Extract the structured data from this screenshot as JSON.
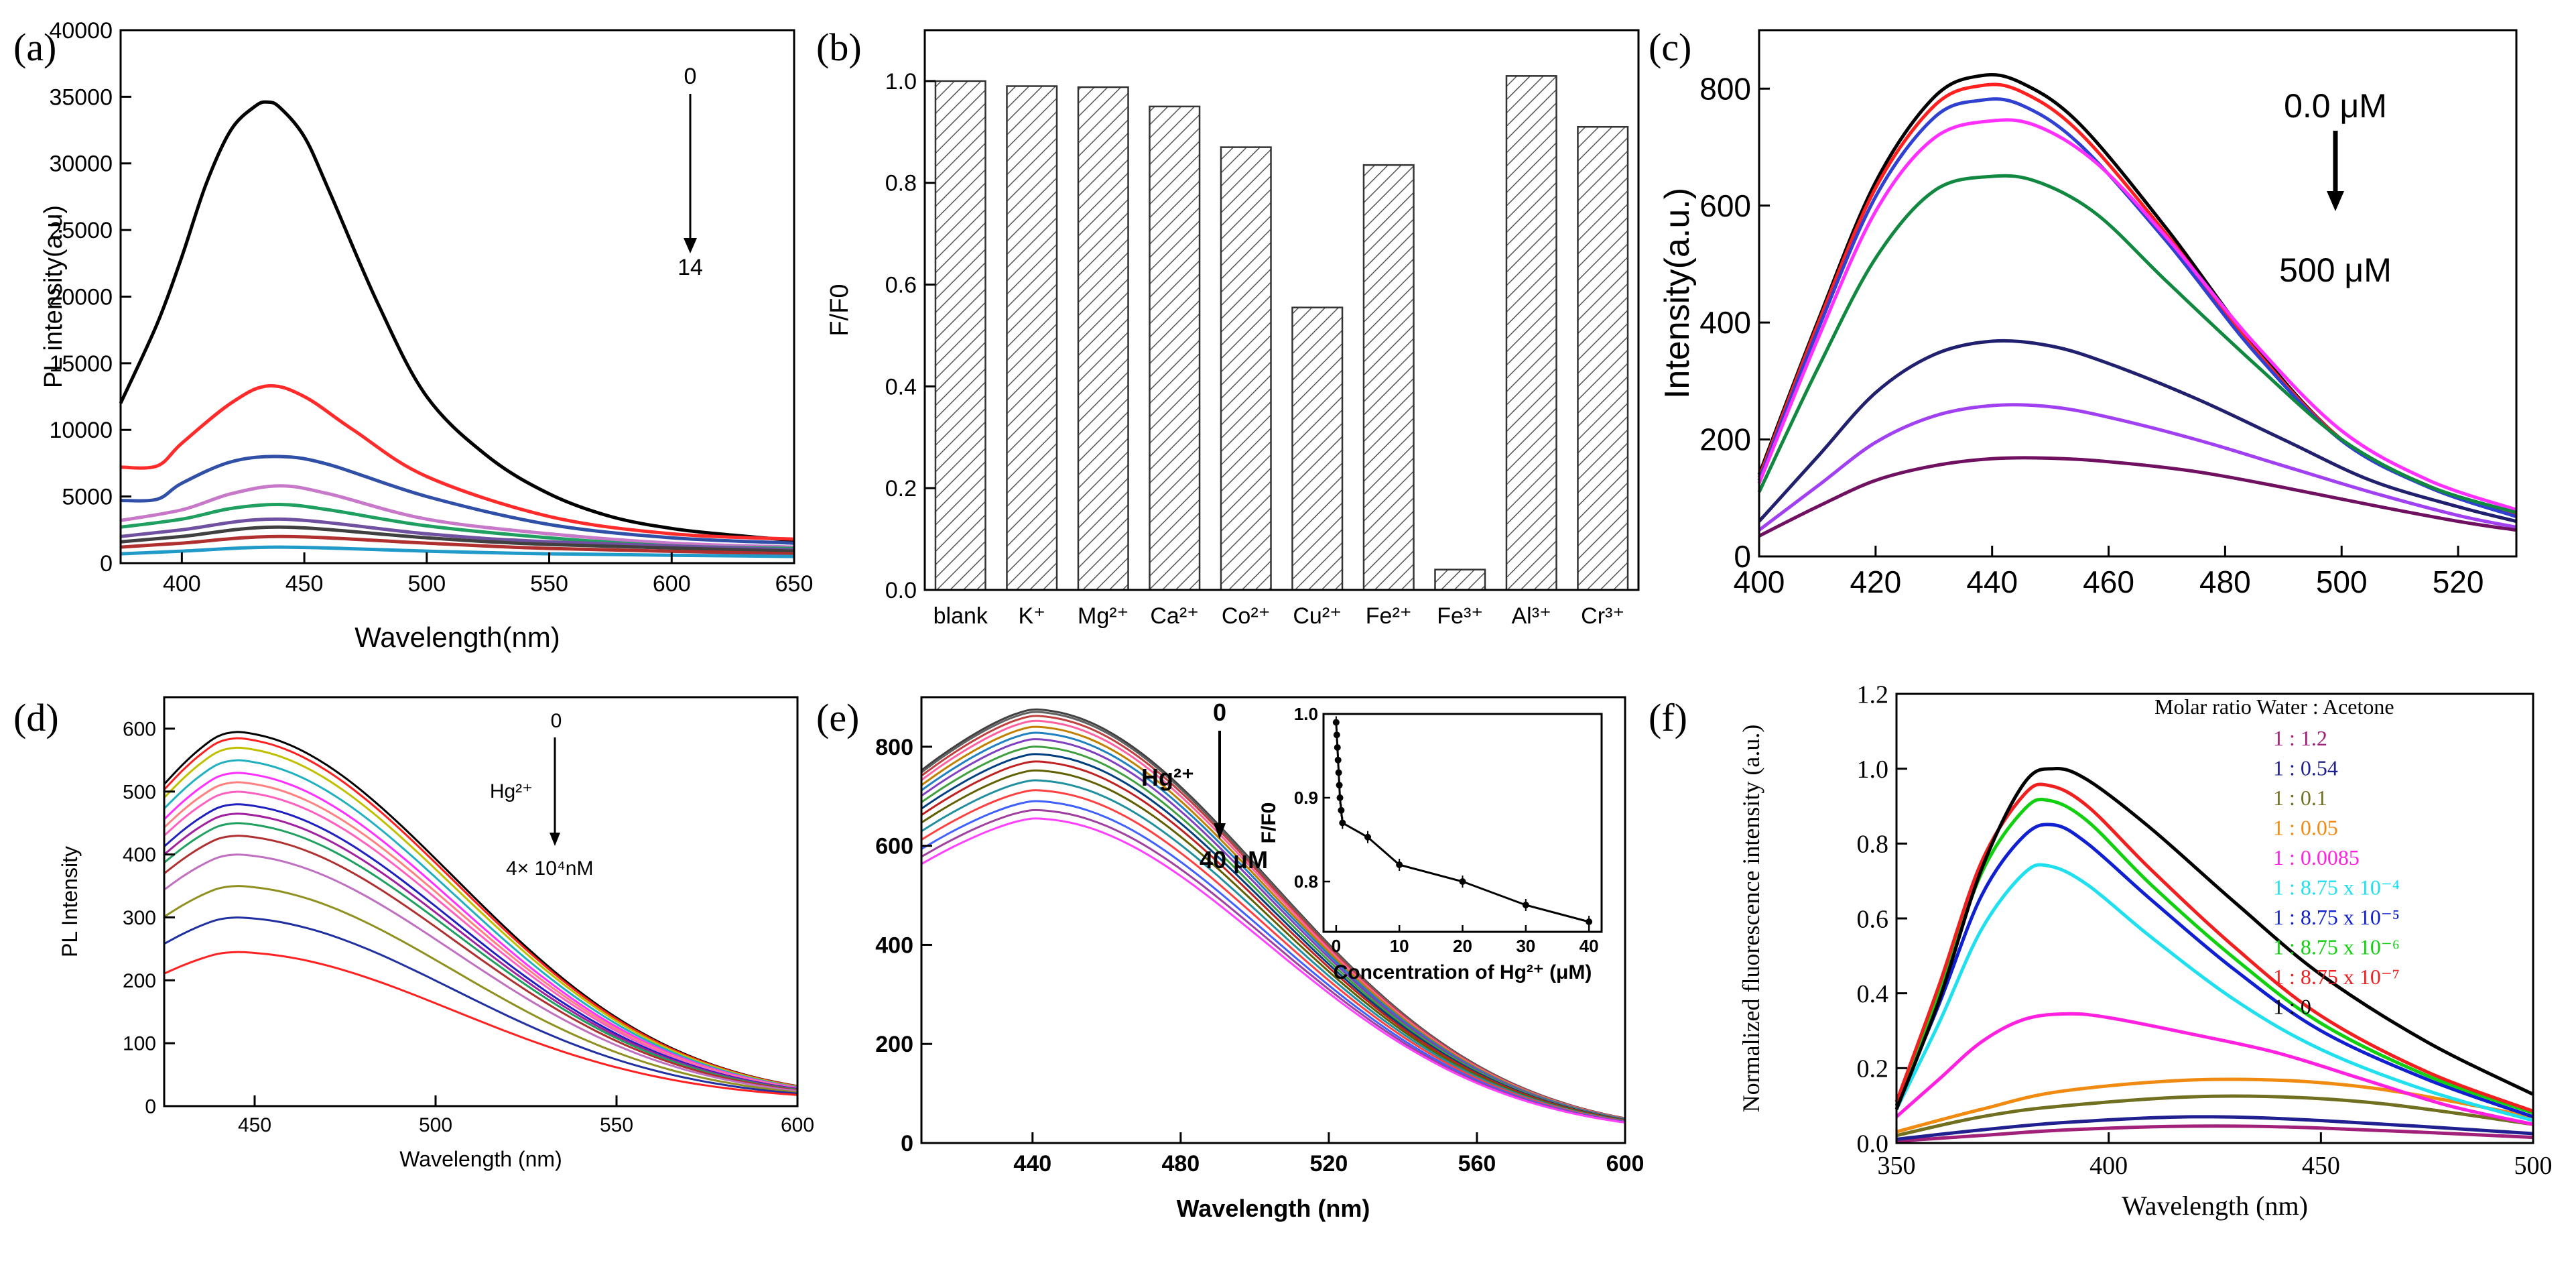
{
  "chart_data": [
    {
      "panel": "(a)",
      "type": "line",
      "xlabel": "Wavelength(nm)",
      "ylabel": "PL intensity(a.u)",
      "xlim": [
        375,
        650
      ],
      "ylim": [
        0,
        40000
      ],
      "xticks": [
        400,
        450,
        500,
        550,
        600,
        650
      ],
      "yticks": [
        0,
        5000,
        10000,
        15000,
        20000,
        25000,
        30000,
        35000,
        40000
      ],
      "annotations": [
        "0",
        "14"
      ],
      "series": [
        {
          "color": "#000000",
          "x": [
            375,
            390,
            400,
            410,
            420,
            430,
            435,
            440,
            450,
            460,
            480,
            500,
            525,
            550,
            575,
            600,
            625,
            650
          ],
          "y": [
            12000,
            18000,
            23000,
            28500,
            32500,
            34300,
            34600,
            34200,
            32000,
            28000,
            19500,
            12500,
            8000,
            5200,
            3500,
            2600,
            2100,
            1700
          ]
        },
        {
          "color": "#ff2a2a",
          "x": [
            375,
            390,
            400,
            420,
            435,
            450,
            470,
            500,
            550,
            600,
            650
          ],
          "y": [
            7200,
            7300,
            9000,
            12000,
            13300,
            12500,
            10000,
            6500,
            3500,
            2200,
            1800
          ]
        },
        {
          "color": "#3050a8",
          "x": [
            375,
            390,
            400,
            420,
            440,
            460,
            500,
            550,
            600,
            650
          ],
          "y": [
            4700,
            4800,
            6000,
            7600,
            8000,
            7400,
            5000,
            2900,
            1900,
            1500
          ]
        },
        {
          "color": "#c878c8",
          "x": [
            375,
            400,
            420,
            440,
            460,
            500,
            550,
            600,
            650
          ],
          "y": [
            3200,
            4000,
            5200,
            5800,
            5200,
            3300,
            2200,
            1500,
            1200
          ]
        },
        {
          "color": "#20a060",
          "x": [
            375,
            400,
            420,
            440,
            460,
            500,
            550,
            600,
            650
          ],
          "y": [
            2700,
            3300,
            4100,
            4400,
            4000,
            2800,
            1900,
            1300,
            1100
          ]
        },
        {
          "color": "#7050a0",
          "x": [
            375,
            400,
            440,
            500,
            550,
            650
          ],
          "y": [
            2000,
            2500,
            3300,
            2200,
            1600,
            1000
          ]
        },
        {
          "color": "#404040",
          "x": [
            375,
            400,
            440,
            500,
            550,
            650
          ],
          "y": [
            1600,
            2000,
            2700,
            1900,
            1400,
            900
          ]
        },
        {
          "color": "#b03030",
          "x": [
            375,
            400,
            440,
            500,
            550,
            650
          ],
          "y": [
            1200,
            1500,
            2000,
            1500,
            1100,
            700
          ]
        },
        {
          "color": "#209ac8",
          "x": [
            375,
            400,
            440,
            500,
            550,
            650
          ],
          "y": [
            700,
            900,
            1200,
            900,
            700,
            500
          ]
        }
      ]
    },
    {
      "panel": "(b)",
      "type": "bar",
      "ylabel": "F/F0",
      "ylim": [
        0,
        1.1
      ],
      "yticks": [
        "0.0",
        "0.2",
        "0.4",
        "0.6",
        "0.8",
        "1.0"
      ],
      "categories": [
        "blank",
        "K⁺",
        "Mg²⁺",
        "Ca²⁺",
        "Co²⁺",
        "Cu²⁺",
        "Fe²⁺",
        "Fe³⁺",
        "Al³⁺",
        "Cr³⁺"
      ],
      "values": [
        1.0,
        0.99,
        0.988,
        0.95,
        0.87,
        0.555,
        0.835,
        0.04,
        1.01,
        0.91
      ]
    },
    {
      "panel": "(c)",
      "type": "line",
      "ylabel": "Intensity(a.u.)",
      "xlabel": "",
      "xlim": [
        400,
        530
      ],
      "ylim": [
        0,
        900
      ],
      "xticks": [
        400,
        420,
        440,
        460,
        480,
        500,
        520
      ],
      "yticks": [
        0,
        200,
        400,
        600,
        800
      ],
      "annotations": [
        "0.0 μM",
        "500 μM"
      ],
      "series": [
        {
          "color": "#000000",
          "x": [
            400,
            410,
            420,
            430,
            438,
            445,
            455,
            470,
            485,
            500,
            515,
            530
          ],
          "y": [
            140,
            400,
            640,
            785,
            822,
            810,
            740,
            560,
            360,
            200,
            120,
            70
          ]
        },
        {
          "color": "#ff2020",
          "x": [
            400,
            410,
            420,
            430,
            438,
            445,
            455,
            470,
            485,
            500,
            515,
            530
          ],
          "y": [
            135,
            395,
            630,
            770,
            805,
            795,
            725,
            550,
            355,
            200,
            120,
            70
          ]
        },
        {
          "color": "#3040d0",
          "x": [
            400,
            410,
            420,
            430,
            438,
            445,
            455,
            470,
            485,
            500,
            515,
            530
          ],
          "y": [
            130,
            385,
            615,
            750,
            780,
            772,
            705,
            538,
            350,
            198,
            118,
            68
          ]
        },
        {
          "color": "#ff30ff",
          "x": [
            400,
            410,
            420,
            430,
            440,
            448,
            458,
            470,
            485,
            500,
            515,
            530
          ],
          "y": [
            125,
            370,
            590,
            715,
            745,
            735,
            672,
            545,
            365,
            215,
            130,
            80
          ]
        },
        {
          "color": "#108840",
          "x": [
            400,
            410,
            420,
            430,
            440,
            448,
            458,
            470,
            485,
            500,
            515,
            530
          ],
          "y": [
            110,
            320,
            510,
            625,
            650,
            640,
            585,
            470,
            330,
            200,
            120,
            75
          ]
        },
        {
          "color": "#20206e",
          "x": [
            400,
            410,
            420,
            430,
            440,
            450,
            460,
            475,
            490,
            505,
            520,
            530
          ],
          "y": [
            60,
            170,
            280,
            345,
            368,
            360,
            330,
            270,
            200,
            130,
            85,
            60
          ]
        },
        {
          "color": "#a040f0",
          "x": [
            400,
            410,
            420,
            430,
            440,
            450,
            460,
            475,
            490,
            505,
            520,
            530
          ],
          "y": [
            45,
            120,
            195,
            240,
            258,
            256,
            238,
            200,
            155,
            110,
            70,
            50
          ]
        },
        {
          "color": "#701060",
          "x": [
            400,
            410,
            420,
            430,
            440,
            450,
            460,
            475,
            490,
            505,
            520,
            530
          ],
          "y": [
            35,
            85,
            130,
            155,
            167,
            168,
            162,
            145,
            118,
            88,
            60,
            45
          ]
        }
      ]
    },
    {
      "panel": "(d)",
      "type": "line",
      "xlabel": "Wavelength (nm)",
      "ylabel": "PL Intensity",
      "xlim": [
        425,
        600
      ],
      "ylim": [
        0,
        650
      ],
      "xticks": [
        450,
        500,
        550,
        600
      ],
      "yticks": [
        0,
        100,
        200,
        300,
        400,
        500,
        600
      ],
      "annotations": [
        "0",
        "Hg²⁺",
        "4× 10⁴nM"
      ],
      "peaks": [
        595,
        585,
        570,
        550,
        530,
        515,
        500,
        480,
        465,
        450,
        430,
        400,
        350,
        300,
        245
      ],
      "colors": [
        "#000000",
        "#ff2020",
        "#c0c000",
        "#20b0c0",
        "#ff30ff",
        "#ff8080",
        "#ff60c0",
        "#2020c0",
        "#a020a0",
        "#20a060",
        "#b03030",
        "#c070c0",
        "#909020",
        "#2030a0",
        "#ff2020"
      ]
    },
    {
      "panel": "(e)",
      "type": "line",
      "xlabel": "Wavelength (nm)",
      "ylabel": "",
      "xlim": [
        410,
        600
      ],
      "ylim": [
        0,
        900
      ],
      "xticks": [
        440,
        480,
        520,
        560,
        600
      ],
      "yticks": [
        0,
        200,
        400,
        600,
        800
      ],
      "annotations": [
        "0",
        "Hg²⁺",
        "40 μM"
      ],
      "peaks": [
        875,
        870,
        862,
        852,
        840,
        828,
        815,
        800,
        785,
        770,
        752,
        732,
        712,
        690,
        672,
        655
      ],
      "colors": [
        "#404040",
        "#606060",
        "#c04040",
        "#ff60a0",
        "#c08000",
        "#2080c0",
        "#8040c0",
        "#40a040",
        "#004080",
        "#c02020",
        "#606000",
        "#2090a0",
        "#ff4040",
        "#4060ff",
        "#a040a0",
        "#ff40ff"
      ],
      "inset": {
        "type": "line",
        "xlabel": "Concentration of Hg²⁺ (μM)",
        "ylabel": "F/F0",
        "xlim": [
          -2,
          42
        ],
        "ylim": [
          0.74,
          1.0
        ],
        "xticks": [
          0,
          10,
          20,
          30,
          40
        ],
        "yticks": [
          "0.8",
          "0.9",
          "1.0"
        ],
        "x": [
          0,
          0.1,
          0.2,
          0.3,
          0.4,
          0.5,
          0.6,
          0.8,
          1,
          5,
          10,
          20,
          30,
          40
        ],
        "y": [
          0.99,
          0.975,
          0.96,
          0.945,
          0.93,
          0.915,
          0.9,
          0.885,
          0.87,
          0.853,
          0.82,
          0.8,
          0.772,
          0.752
        ]
      }
    },
    {
      "panel": "(f)",
      "type": "line",
      "xlabel": "Wavelength (nm)",
      "ylabel": "Normalized fluorescence intensity (a.u.)",
      "xlim": [
        350,
        500
      ],
      "ylim": [
        0,
        1.2
      ],
      "xticks": [
        350,
        400,
        450,
        500
      ],
      "yticks": [
        "0.0",
        "0.2",
        "0.4",
        "0.6",
        "0.8",
        "1.0",
        "1.2"
      ],
      "legend_title": "Molar ratio Water : Acetone",
      "series": [
        {
          "name": "1 : 1.2",
          "color": "#a0207a",
          "x": [
            350,
            370,
            390,
            420,
            450,
            500
          ],
          "y": [
            0.005,
            0.02,
            0.035,
            0.045,
            0.04,
            0.015
          ]
        },
        {
          "name": "1 : 0.54",
          "color": "#202090",
          "x": [
            350,
            370,
            390,
            420,
            450,
            500
          ],
          "y": [
            0.01,
            0.035,
            0.055,
            0.07,
            0.06,
            0.025
          ]
        },
        {
          "name": "1 : 0.1",
          "color": "#707020",
          "x": [
            350,
            370,
            390,
            425,
            460,
            500
          ],
          "y": [
            0.02,
            0.07,
            0.1,
            0.125,
            0.11,
            0.05
          ]
        },
        {
          "name": "1 : 0.05",
          "color": "#f08a10",
          "x": [
            350,
            370,
            390,
            425,
            460,
            500
          ],
          "y": [
            0.03,
            0.09,
            0.14,
            0.17,
            0.15,
            0.07
          ]
        },
        {
          "name": "1 : 0.0085",
          "color": "#ff20e0",
          "x": [
            350,
            360,
            370,
            380,
            390,
            400,
            420,
            440,
            460,
            480,
            500
          ],
          "y": [
            0.07,
            0.17,
            0.27,
            0.33,
            0.345,
            0.335,
            0.29,
            0.24,
            0.17,
            0.1,
            0.05
          ]
        },
        {
          "name": "1 : 8.75 x 10⁻⁴",
          "color": "#20e0f0",
          "x": [
            350,
            360,
            370,
            380,
            386,
            395,
            410,
            430,
            450,
            475,
            500
          ],
          "y": [
            0.09,
            0.32,
            0.57,
            0.72,
            0.74,
            0.69,
            0.55,
            0.38,
            0.25,
            0.14,
            0.06
          ]
        },
        {
          "name": "1 : 8.75 x 10⁻⁵",
          "color": "#1020d0",
          "x": [
            350,
            360,
            370,
            380,
            387,
            395,
            410,
            430,
            450,
            475,
            500
          ],
          "y": [
            0.1,
            0.37,
            0.66,
            0.82,
            0.85,
            0.8,
            0.65,
            0.46,
            0.3,
            0.17,
            0.07
          ]
        },
        {
          "name": "1 : 8.75 x 10⁻⁶",
          "color": "#10d010",
          "x": [
            350,
            360,
            370,
            380,
            386,
            395,
            410,
            430,
            450,
            475,
            500
          ],
          "y": [
            0.11,
            0.4,
            0.72,
            0.89,
            0.915,
            0.86,
            0.69,
            0.49,
            0.32,
            0.18,
            0.08
          ]
        },
        {
          "name": "1 : 8.75 x 10⁻⁷",
          "color": "#f02020",
          "x": [
            350,
            360,
            370,
            380,
            386,
            395,
            410,
            430,
            450,
            475,
            500
          ],
          "y": [
            0.11,
            0.42,
            0.75,
            0.93,
            0.955,
            0.9,
            0.73,
            0.52,
            0.34,
            0.19,
            0.085
          ]
        },
        {
          "name": "1 : 0",
          "color": "#000000",
          "x": [
            350,
            360,
            370,
            380,
            387,
            395,
            410,
            430,
            450,
            475,
            500
          ],
          "y": [
            0.09,
            0.38,
            0.73,
            0.96,
            1.0,
            0.97,
            0.84,
            0.64,
            0.45,
            0.27,
            0.13
          ]
        }
      ]
    }
  ]
}
